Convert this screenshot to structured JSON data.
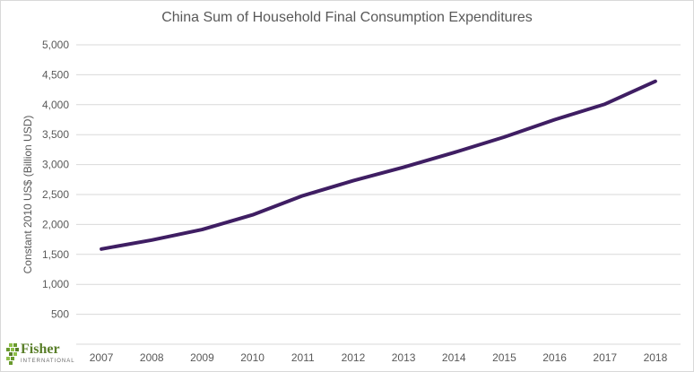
{
  "chart_data": {
    "type": "line",
    "title": "China Sum of Household Final Consumption Expenditures",
    "xlabel": "",
    "ylabel": "Constant 2010 US$ (Billion USD)",
    "categories": [
      "2007",
      "2008",
      "2009",
      "2010",
      "2011",
      "2012",
      "2013",
      "2014",
      "2015",
      "2016",
      "2017",
      "2018"
    ],
    "series": [
      {
        "name": "",
        "values": [
          1590,
          1740,
          1915,
          2160,
          2480,
          2730,
          2955,
          3200,
          3460,
          3750,
          4010,
          4390
        ],
        "color": "#3f1e63"
      }
    ],
    "ylim": [
      0,
      5000
    ],
    "yticks": [
      500,
      1000,
      1500,
      2000,
      2500,
      3000,
      3500,
      4000,
      4500,
      5000
    ],
    "ytick_labels": [
      "500",
      "1,000",
      "1,500",
      "2,000",
      "2,500",
      "3,000",
      "3,500",
      "4,000",
      "4,500",
      "5,000"
    ],
    "grid": true,
    "gridline_color": "#d9d9d9"
  },
  "logo": {
    "name": "Fisher",
    "subtitle": "INTERNATIONAL",
    "mark_color": "#6a9a2e"
  }
}
